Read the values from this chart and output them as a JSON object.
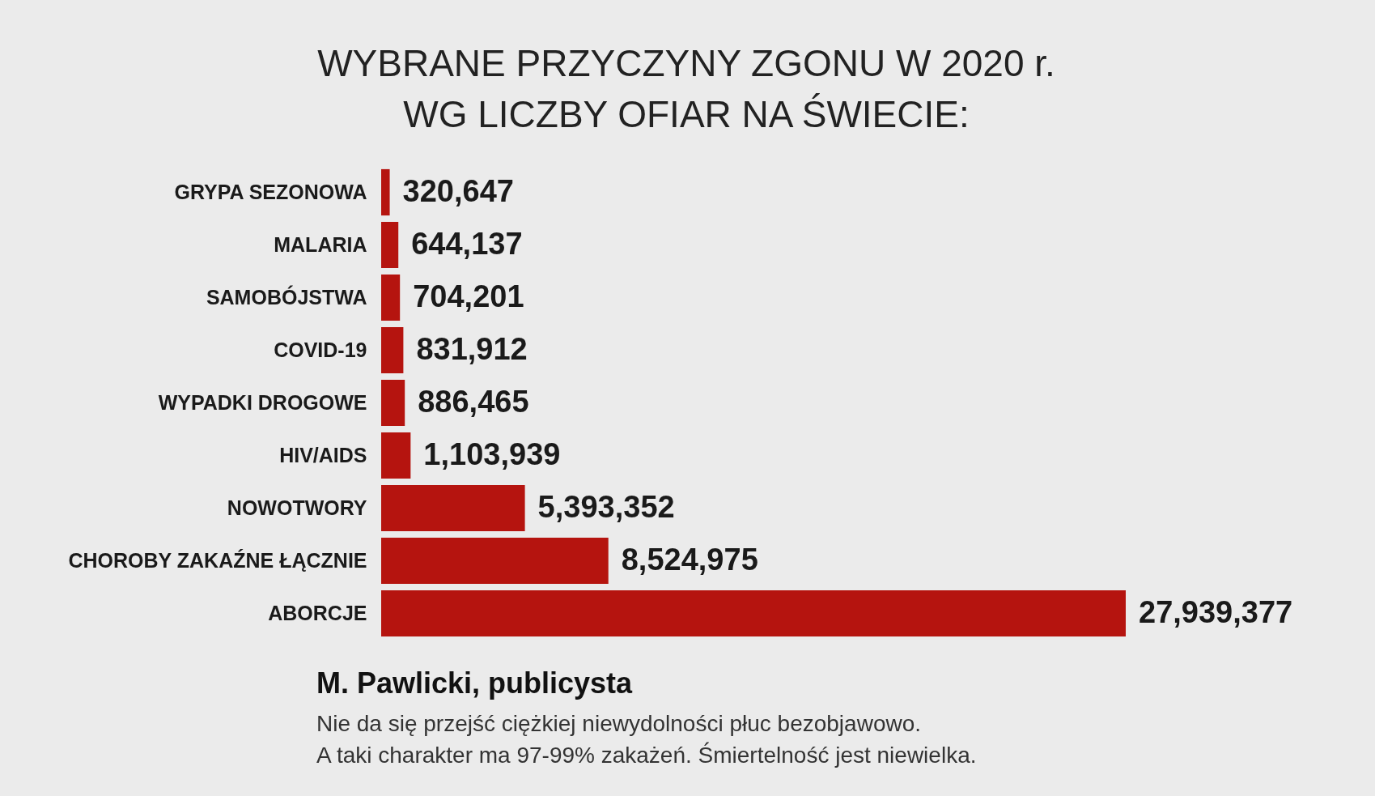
{
  "chart_data": {
    "type": "bar",
    "orientation": "horizontal",
    "title": "WYBRANE PRZYCZYNY ZGONU W 2020 r.\nWG LICZBY OFIAR NA ŚWIECIE:",
    "categories": [
      "GRYPA SEZONOWA",
      "MALARIA",
      "SAMOBÓJSTWA",
      "COVID-19",
      "WYPADKI DROGOWE",
      "HIV/AIDS",
      "NOWOTWORY",
      "CHOROBY ZAKAŹNE ŁĄCZNIE",
      "ABORCJE"
    ],
    "values": [
      320647,
      644137,
      704201,
      831912,
      886465,
      1103939,
      5393352,
      8524975,
      27939377
    ],
    "value_labels": [
      "320,647",
      "644,137",
      "704,201",
      "831,912",
      "886,465",
      "1,103,939",
      "5,393,352",
      "8,524,975",
      "27,939,377"
    ],
    "color": "#b5140f",
    "annotations": [
      "M. Pawlicki, publicysta",
      "Nie da się przejść ciężkiej niewydolności płuc bezobjawowo.",
      "A taki charakter ma 97-99% zakażeń. Śmiertelność jest niewielka."
    ]
  }
}
